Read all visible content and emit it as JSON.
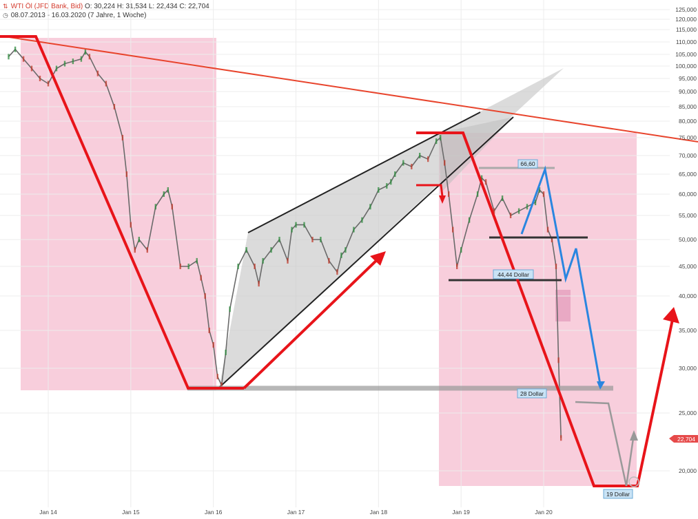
{
  "header": {
    "title": "WTI Öl (JFD Bank, Bid)",
    "ohlc": "O: 30,224  H: 31,534  L: 22,434  C: 22,704",
    "range": "08.07.2013 - 16.03.2020",
    "interval": "(7 Jahre, 1 Woche)"
  },
  "colors": {
    "accent_red": "#e8141a",
    "trend_blue": "#2a86e0",
    "pink_zone": "#f7c5d6",
    "price_tag": "#e64a4a"
  },
  "price_tag": "22,704",
  "annotations": {
    "top_level": "66,60",
    "mid_level": "44,44 Dollar",
    "support": "28 Dollar",
    "target": "19 Dollar"
  },
  "chart_data": {
    "type": "line",
    "scale": "log",
    "ylim": [
      17,
      125
    ],
    "yticks": [
      "125,000",
      "120,000",
      "115,000",
      "110,000",
      "105,000",
      "100,000",
      "95,000",
      "90,000",
      "85,000",
      "80,000",
      "75,000",
      "70,000",
      "65,000",
      "60,000",
      "55,000",
      "50,000",
      "45,000",
      "40,000",
      "35,000",
      "30,000",
      "25,000",
      "20,000"
    ],
    "xticks": [
      "Jan 14",
      "Jan 15",
      "Jan 16",
      "Jan 17",
      "Jan 18",
      "Jan 19",
      "Jan 20"
    ],
    "series": [
      {
        "values": [
          [
            2013.52,
            104
          ],
          [
            2013.6,
            107
          ],
          [
            2013.7,
            103
          ],
          [
            2013.8,
            99
          ],
          [
            2013.9,
            95
          ],
          [
            2014.0,
            93
          ],
          [
            2014.1,
            99
          ],
          [
            2014.2,
            101
          ],
          [
            2014.3,
            102
          ],
          [
            2014.4,
            103
          ],
          [
            2014.45,
            106
          ],
          [
            2014.5,
            104
          ],
          [
            2014.6,
            97
          ],
          [
            2014.7,
            93
          ],
          [
            2014.8,
            85
          ],
          [
            2014.9,
            75
          ],
          [
            2014.95,
            65
          ],
          [
            2015.0,
            53
          ],
          [
            2015.05,
            48
          ],
          [
            2015.1,
            50
          ],
          [
            2015.2,
            48
          ],
          [
            2015.3,
            57
          ],
          [
            2015.4,
            60
          ],
          [
            2015.45,
            61
          ],
          [
            2015.5,
            57
          ],
          [
            2015.6,
            45
          ],
          [
            2015.7,
            45
          ],
          [
            2015.8,
            46
          ],
          [
            2015.85,
            43
          ],
          [
            2015.9,
            40
          ],
          [
            2015.95,
            35
          ],
          [
            2016.0,
            33
          ],
          [
            2016.05,
            29
          ],
          [
            2016.1,
            28
          ],
          [
            2016.15,
            32
          ],
          [
            2016.2,
            38
          ],
          [
            2016.3,
            45
          ],
          [
            2016.4,
            48
          ],
          [
            2016.5,
            45
          ],
          [
            2016.55,
            42
          ],
          [
            2016.6,
            46
          ],
          [
            2016.7,
            48
          ],
          [
            2016.8,
            50
          ],
          [
            2016.9,
            46
          ],
          [
            2016.95,
            52
          ],
          [
            2017.0,
            53
          ],
          [
            2017.1,
            53
          ],
          [
            2017.2,
            50
          ],
          [
            2017.3,
            50
          ],
          [
            2017.4,
            46
          ],
          [
            2017.5,
            44
          ],
          [
            2017.55,
            47
          ],
          [
            2017.6,
            48
          ],
          [
            2017.7,
            52
          ],
          [
            2017.8,
            54
          ],
          [
            2017.9,
            57
          ],
          [
            2018.0,
            61
          ],
          [
            2018.1,
            62
          ],
          [
            2018.15,
            63
          ],
          [
            2018.2,
            65
          ],
          [
            2018.3,
            68
          ],
          [
            2018.4,
            67
          ],
          [
            2018.5,
            70
          ],
          [
            2018.6,
            69
          ],
          [
            2018.7,
            74
          ],
          [
            2018.75,
            75
          ],
          [
            2018.8,
            68
          ],
          [
            2018.85,
            60
          ],
          [
            2018.9,
            52
          ],
          [
            2018.95,
            45
          ],
          [
            2019.0,
            48
          ],
          [
            2019.1,
            54
          ],
          [
            2019.2,
            60
          ],
          [
            2019.25,
            64
          ],
          [
            2019.3,
            63
          ],
          [
            2019.4,
            56
          ],
          [
            2019.5,
            59
          ],
          [
            2019.6,
            55
          ],
          [
            2019.7,
            56
          ],
          [
            2019.8,
            57
          ],
          [
            2019.9,
            58
          ],
          [
            2019.95,
            61
          ],
          [
            2020.0,
            60
          ],
          [
            2020.05,
            52
          ],
          [
            2020.1,
            50
          ],
          [
            2020.15,
            45
          ],
          [
            2020.18,
            31
          ],
          [
            2020.21,
            22.7
          ]
        ]
      }
    ]
  }
}
